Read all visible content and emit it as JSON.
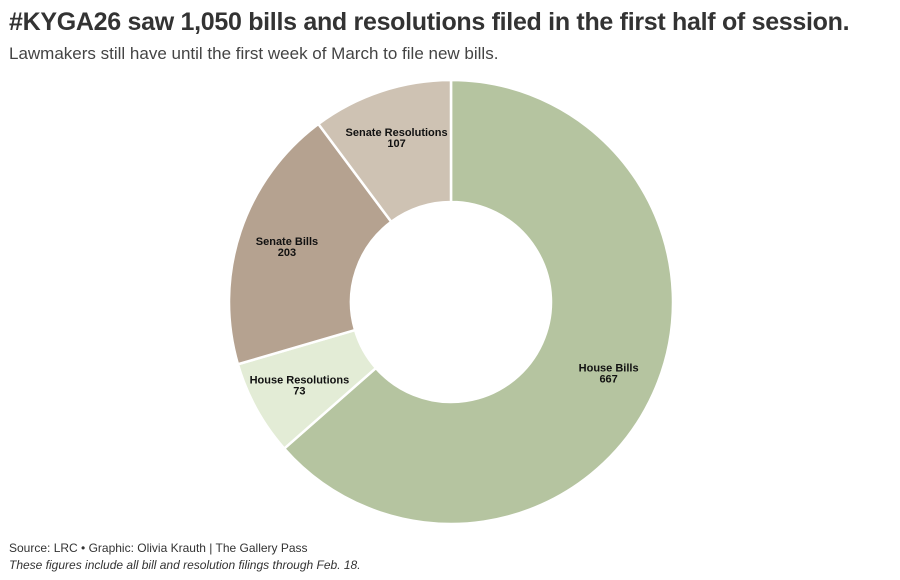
{
  "chart_data": {
    "type": "pie",
    "style": "donut",
    "title": "#KYGA26 saw 1,050 bills and resolutions filed in the first half of session.",
    "subtitle": "Lawmakers still have until the first week of March to file new bills.",
    "categories": [
      "House Bills",
      "House Resolutions",
      "Senate Bills",
      "Senate Resolutions"
    ],
    "values": [
      667,
      73,
      203,
      107
    ],
    "colors": [
      "#b5c4a0",
      "#e3ecd6",
      "#b5a290",
      "#cec2b3"
    ],
    "source": "Source: LRC • Graphic: Olivia Krauth | The Gallery Pass",
    "note": "These figures include all bill and resolution filings through Feb. 18."
  }
}
